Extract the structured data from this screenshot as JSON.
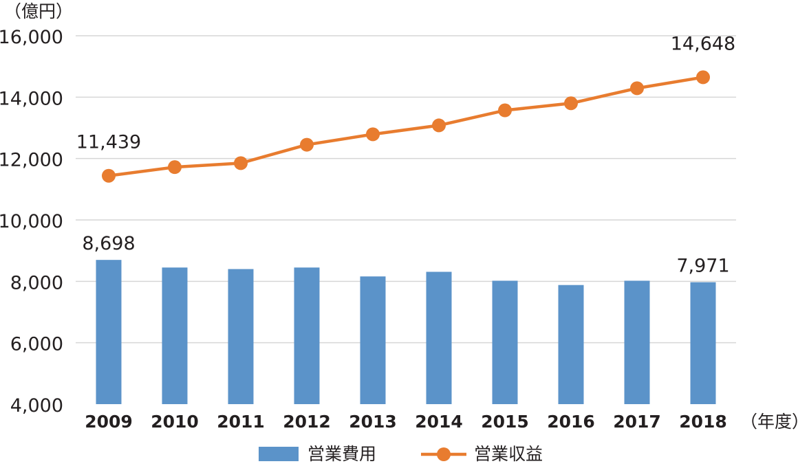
{
  "chart_data": {
    "type": "bar+line",
    "y_unit_label": "（億円）",
    "x_unit_label": "（年度）",
    "categories": [
      "2009",
      "2010",
      "2011",
      "2012",
      "2013",
      "2014",
      "2015",
      "2016",
      "2017",
      "2018"
    ],
    "ylim": [
      4000,
      16000
    ],
    "yticks": [
      4000,
      6000,
      8000,
      10000,
      12000,
      14000,
      16000
    ],
    "ytick_labels": [
      "4,000",
      "6,000",
      "8,000",
      "10,000",
      "12,000",
      "14,000",
      "16,000"
    ],
    "grid": true,
    "legend_position": "bottom-center",
    "series": [
      {
        "name": "営業費用",
        "type": "bar",
        "color": "#5b93c9",
        "values": [
          8698,
          8450,
          8400,
          8450,
          8160,
          8310,
          8020,
          7880,
          8020,
          7971
        ],
        "data_labels": [
          {
            "index": 0,
            "text": "8,698"
          },
          {
            "index": 9,
            "text": "7,971"
          }
        ]
      },
      {
        "name": "営業収益",
        "type": "line",
        "color": "#e87c2f",
        "values": [
          11439,
          11720,
          11850,
          12450,
          12790,
          13080,
          13570,
          13800,
          14290,
          14648
        ],
        "data_labels": [
          {
            "index": 0,
            "text": "11,439"
          },
          {
            "index": 9,
            "text": "14,648"
          }
        ]
      }
    ]
  }
}
